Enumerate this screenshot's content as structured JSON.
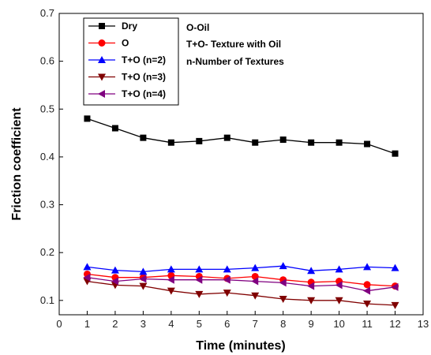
{
  "chart_data": {
    "type": "line",
    "title": "",
    "xlabel": "Time (minutes)",
    "ylabel": "Friction coefficient",
    "xlim": [
      0,
      13
    ],
    "ylim": [
      0.07,
      0.7
    ],
    "xticks": [
      0,
      1,
      2,
      3,
      4,
      5,
      6,
      7,
      8,
      9,
      10,
      11,
      12,
      13
    ],
    "yticks": [
      0.1,
      0.2,
      0.3,
      0.4,
      0.5,
      0.6,
      0.7
    ],
    "ytick_labels": [
      "0.1",
      "0.2",
      "0.3",
      "0.4",
      "0.5",
      "0.6",
      "0.7"
    ],
    "grid": false,
    "legend_position": "top-left",
    "x": [
      1,
      2,
      3,
      4,
      5,
      6,
      7,
      8,
      9,
      10,
      11,
      12
    ],
    "series": [
      {
        "name": "Dry",
        "color": "#000000",
        "marker": "square",
        "values": [
          0.48,
          0.46,
          0.44,
          0.43,
          0.433,
          0.44,
          0.43,
          0.436,
          0.43,
          0.43,
          0.427,
          0.407
        ]
      },
      {
        "name": "O",
        "color": "#ff0000",
        "marker": "circle",
        "values": [
          0.155,
          0.148,
          0.148,
          0.152,
          0.15,
          0.146,
          0.15,
          0.143,
          0.138,
          0.14,
          0.133,
          0.13
        ]
      },
      {
        "name": "T+O (n=2)",
        "color": "#0000ff",
        "marker": "triangle-up",
        "values": [
          0.17,
          0.163,
          0.16,
          0.165,
          0.165,
          0.165,
          0.168,
          0.172,
          0.162,
          0.165,
          0.17,
          0.168
        ]
      },
      {
        "name": "T+O (n=3)",
        "color": "#800000",
        "marker": "triangle-down",
        "values": [
          0.14,
          0.132,
          0.13,
          0.12,
          0.113,
          0.116,
          0.11,
          0.103,
          0.1,
          0.1,
          0.093,
          0.09
        ]
      },
      {
        "name": "T+O (n=4)",
        "color": "#800080",
        "marker": "triangle-left",
        "values": [
          0.148,
          0.14,
          0.145,
          0.143,
          0.143,
          0.143,
          0.14,
          0.137,
          0.13,
          0.132,
          0.12,
          0.128
        ]
      }
    ],
    "annotations": [
      "O-Oil",
      "T+O- Texture with Oil",
      "n-Number of Textures"
    ]
  }
}
